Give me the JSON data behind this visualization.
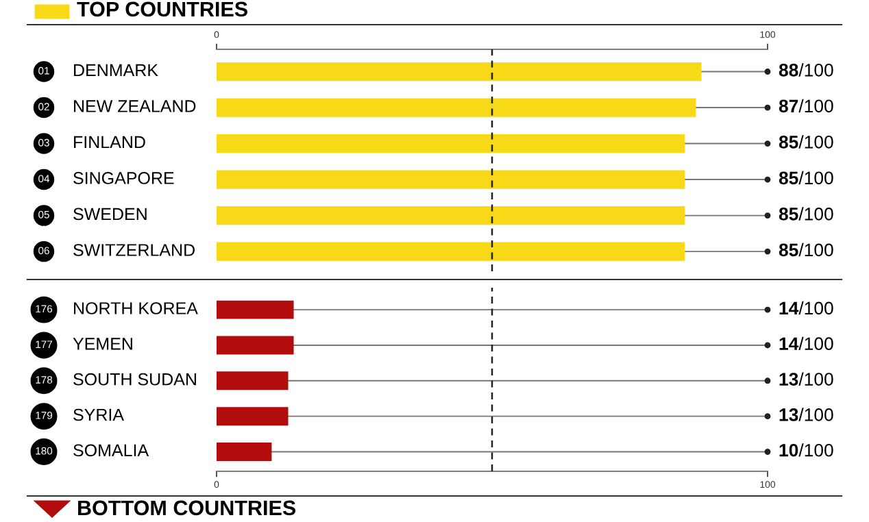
{
  "chart_data": [
    {
      "type": "bar",
      "orientation": "horizontal",
      "title": "TOP COUNTRIES",
      "categories": [
        "DENMARK",
        "NEW ZEALAND",
        "FINLAND",
        "SINGAPORE",
        "SWEDEN",
        "SWITZERLAND"
      ],
      "values": [
        88,
        87,
        85,
        85,
        85,
        85
      ],
      "colors": [
        "#f7d917",
        "#f7d917",
        "#f7d917",
        "#f7d917",
        "#f7d917",
        "#f7d917"
      ],
      "value_labels": [
        "88/100",
        "87/100",
        "85/100",
        "85/100",
        "85/100",
        "85/100"
      ],
      "annotations": [
        "01",
        "02",
        "03",
        "04",
        "05",
        "06"
      ],
      "xlim": [
        0,
        100
      ],
      "xticks": [
        0,
        100
      ],
      "ref_lines": [
        {
          "axis": "x",
          "value": 50,
          "line_style": "dashed",
          "color": "#222222"
        }
      ],
      "grid": false,
      "legend": false
    },
    {
      "type": "bar",
      "orientation": "horizontal",
      "title": "BOTTOM COUNTRIES",
      "categories": [
        "NORTH KOREA",
        "YEMEN",
        "SOUTH SUDAN",
        "SYRIA",
        "SOMALIA"
      ],
      "values": [
        14,
        14,
        13,
        13,
        10
      ],
      "colors": [
        "#b30c0c",
        "#b30c0c",
        "#b30c0c",
        "#b30c0c",
        "#b30c0c"
      ],
      "value_labels": [
        "14/100",
        "14/100",
        "13/100",
        "13/100",
        "10/100"
      ],
      "annotations": [
        "176",
        "177",
        "178",
        "179",
        "180"
      ],
      "xlim": [
        0,
        100
      ],
      "xticks": [
        0,
        100
      ],
      "ref_lines": [
        {
          "axis": "x",
          "value": 50,
          "line_style": "dashed",
          "color": "#222222"
        }
      ],
      "grid": false,
      "legend": false
    }
  ]
}
